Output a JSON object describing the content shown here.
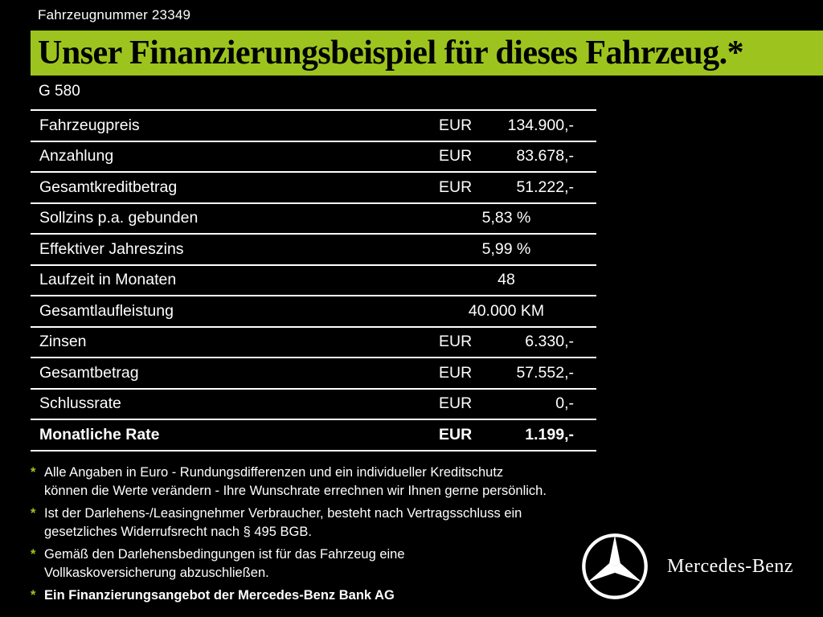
{
  "header": {
    "vehicle_number": "Fahrzeugnummer 23349",
    "banner_title": "Unser Finanzierungsbeispiel für dieses Fahrzeug.*",
    "model": "G 580"
  },
  "table": {
    "rows": [
      {
        "label": "Fahrzeugpreis",
        "currency": "EUR",
        "value": "134.900,-",
        "center": false,
        "bold": false
      },
      {
        "label": "Anzahlung",
        "currency": "EUR",
        "value": "83.678,-",
        "center": false,
        "bold": false
      },
      {
        "label": "Gesamtkreditbetrag",
        "currency": "EUR",
        "value": "51.222,-",
        "center": false,
        "bold": false
      },
      {
        "label": "Sollzins p.a. gebunden",
        "currency": "",
        "value": "5,83 %",
        "center": true,
        "bold": false
      },
      {
        "label": "Effektiver Jahreszins",
        "currency": "",
        "value": "5,99 %",
        "center": true,
        "bold": false
      },
      {
        "label": "Laufzeit in Monaten",
        "currency": "",
        "value": "48",
        "center": true,
        "bold": false
      },
      {
        "label": "Gesamtlaufleistung",
        "currency": "",
        "value": "40.000 KM",
        "center": true,
        "bold": false
      },
      {
        "label": "Zinsen",
        "currency": "EUR",
        "value": "6.330,-",
        "center": false,
        "bold": false
      },
      {
        "label": "Gesamtbetrag",
        "currency": "EUR",
        "value": "57.552,-",
        "center": false,
        "bold": false
      },
      {
        "label": "Schlussrate",
        "currency": "EUR",
        "value": "0,-",
        "center": false,
        "bold": false
      },
      {
        "label": "Monatliche Rate",
        "currency": "EUR",
        "value": "1.199,-",
        "center": false,
        "bold": true
      }
    ]
  },
  "footnotes": [
    {
      "marker": "*",
      "bold": false,
      "lines": [
        "Alle Angaben in Euro - Rundungsdifferenzen und ein individueller Kreditschutz",
        "können die Werte verändern - Ihre Wunschrate errechnen wir Ihnen gerne persönlich."
      ]
    },
    {
      "marker": "*",
      "bold": false,
      "lines": [
        "Ist der Darlehens-/Leasingnehmer Verbraucher, besteht nach Vertragsschluss ein",
        "gesetzliches Widerrufsrecht nach § 495 BGB."
      ]
    },
    {
      "marker": "*",
      "bold": false,
      "lines": [
        "Gemäß den Darlehensbedingungen ist für das Fahrzeug eine",
        "Vollkaskoversicherung abzuschließen."
      ]
    },
    {
      "marker": "*",
      "bold": true,
      "lines": [
        "Ein Finanzierungsangebot der Mercedes-Benz Bank AG"
      ]
    }
  ],
  "footer": {
    "brand": "Mercedes-Benz"
  },
  "colors": {
    "accent_green": "#9dc41e",
    "background": "#000000",
    "text": "#ffffff"
  }
}
